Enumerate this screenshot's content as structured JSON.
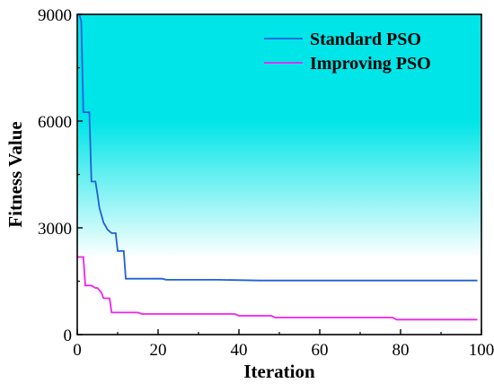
{
  "chart_data": {
    "type": "line",
    "title": "",
    "xlabel": "Iteration",
    "ylabel": "Fitness Value",
    "xlim": [
      0,
      100
    ],
    "ylim": [
      0,
      9000
    ],
    "xticks": [
      0,
      20,
      40,
      60,
      80,
      100
    ],
    "yticks": [
      0,
      3000,
      6000,
      9000
    ],
    "grid": false,
    "legend": "top-right",
    "background": {
      "top_color": "#00e5e8",
      "fade_from": 6000,
      "fade_to": 2150
    },
    "series": [
      {
        "name": "Standard PSO",
        "color": "#1f5fd8",
        "points": [
          [
            0.5,
            9000
          ],
          [
            1,
            8800
          ],
          [
            1.5,
            6250
          ],
          [
            3,
            6250
          ],
          [
            3.5,
            4300
          ],
          [
            4.5,
            4300
          ],
          [
            5,
            3950
          ],
          [
            5.5,
            3550
          ],
          [
            6.5,
            3150
          ],
          [
            7.5,
            2950
          ],
          [
            8.5,
            2850
          ],
          [
            9.5,
            2850
          ],
          [
            10,
            2350
          ],
          [
            11.5,
            2350
          ],
          [
            12,
            1570
          ],
          [
            21,
            1570
          ],
          [
            22,
            1540
          ],
          [
            35,
            1540
          ],
          [
            45,
            1520
          ],
          [
            99,
            1520
          ]
        ]
      },
      {
        "name": "Improving PSO",
        "color": "#ee22ee",
        "points": [
          [
            0,
            2180
          ],
          [
            1.5,
            2180
          ],
          [
            2,
            1380
          ],
          [
            3.5,
            1380
          ],
          [
            4.5,
            1310
          ],
          [
            5,
            1310
          ],
          [
            6,
            1180
          ],
          [
            6.5,
            1020
          ],
          [
            8,
            1020
          ],
          [
            8.5,
            620
          ],
          [
            15,
            620
          ],
          [
            16,
            580
          ],
          [
            39,
            580
          ],
          [
            40,
            530
          ],
          [
            48,
            530
          ],
          [
            49,
            480
          ],
          [
            78,
            480
          ],
          [
            79,
            420
          ],
          [
            99,
            420
          ]
        ]
      }
    ]
  }
}
